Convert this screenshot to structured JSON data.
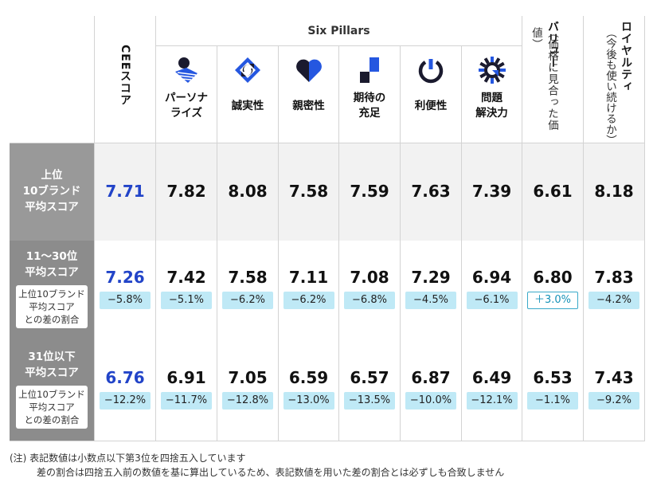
{
  "header": {
    "cee": "CEEスコア",
    "six_pillars": "Six Pillars",
    "pillars": [
      {
        "label_1": "パーソナ",
        "label_2": "ライズ",
        "icon": "personalize-icon"
      },
      {
        "label_1": "誠実性",
        "label_2": "",
        "icon": "integrity-icon"
      },
      {
        "label_1": "親密性",
        "label_2": "",
        "icon": "intimacy-icon"
      },
      {
        "label_1": "期待の",
        "label_2": "充足",
        "icon": "expectation-icon"
      },
      {
        "label_1": "利便性",
        "label_2": "",
        "icon": "convenience-icon"
      },
      {
        "label_1": "問題",
        "label_2": "解決力",
        "icon": "problem-solving-icon"
      }
    ],
    "value_main": "バリュー",
    "value_sub": "（価格に見合った価値）",
    "loyalty_main": "ロイヤルティ",
    "loyalty_sub": "（今後も使い続けるか）"
  },
  "chart_data": {
    "type": "table",
    "columns": [
      "CEEスコア",
      "パーソナライズ",
      "誠実性",
      "親密性",
      "期待の充足",
      "利便性",
      "問題解決力",
      "バリュー（価格に見合った価値）",
      "ロイヤルティ（今後も使い続けるか）"
    ],
    "rows": [
      {
        "label_lines": [
          "上位",
          "10ブランド",
          "平均スコア"
        ],
        "values": [
          "7.71",
          "7.82",
          "8.08",
          "7.58",
          "7.59",
          "7.63",
          "7.39",
          "6.61",
          "8.18"
        ],
        "diffs": []
      },
      {
        "label_lines": [
          "11〜30位",
          "平均スコア"
        ],
        "sub_lines": [
          "上位10ブランド",
          "平均スコア",
          "との差の割合"
        ],
        "values": [
          "7.26",
          "7.42",
          "7.58",
          "7.11",
          "7.08",
          "7.29",
          "6.94",
          "6.80",
          "7.83"
        ],
        "diffs": [
          "−5.8%",
          "−5.1%",
          "−6.2%",
          "−6.2%",
          "−6.8%",
          "−4.5%",
          "−6.1%",
          "＋3.0%",
          "−4.2%"
        ]
      },
      {
        "label_lines": [
          "31位以下",
          "平均スコア"
        ],
        "sub_lines": [
          "上位10ブランド",
          "平均スコア",
          "との差の割合"
        ],
        "values": [
          "6.76",
          "6.91",
          "7.05",
          "6.59",
          "6.57",
          "6.87",
          "6.49",
          "6.53",
          "7.43"
        ],
        "diffs": [
          "−12.2%",
          "−11.7%",
          "−12.8%",
          "−13.0%",
          "−13.5%",
          "−10.0%",
          "−12.1%",
          "−1.1%",
          "−9.2%"
        ]
      }
    ]
  },
  "colors": {
    "row1_label_bg": "#999999",
    "row_label_bg": "#8c8c8c",
    "row1_bg": "#f2f2f2",
    "cee_value": "#2244c8",
    "diff_bg": "#bfe9f6",
    "icon_dark": "#1a1a2e",
    "icon_blue": "#2557e0"
  },
  "notes": [
    "(注) 表記数値は小数点以下第3位を四捨五入しています",
    "差の割合は四捨五入前の数値を基に算出しているため、表記数値を用いた差の割合とは必ずしも合致しません"
  ]
}
